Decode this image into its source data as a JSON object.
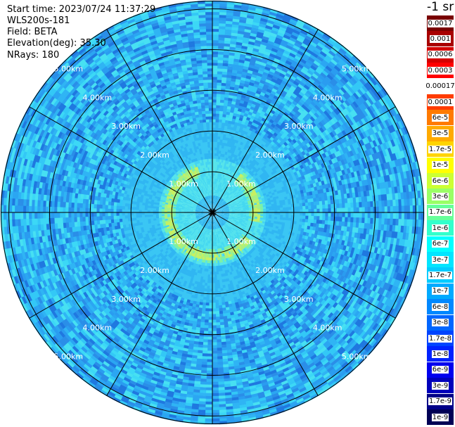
{
  "header": {
    "start_time": "Start time: 2023/07/24 11:37:29",
    "instrument": "WLS200s-181",
    "field": "Field: BETA",
    "elevation": "Elevation(deg): 35.30",
    "nrays": "NRays: 180"
  },
  "colorbar": {
    "unit": "-1 sr",
    "entries": [
      {
        "label": "0.0017",
        "color": "#7a0000"
      },
      {
        "label": "0.001",
        "color": "#a80000"
      },
      {
        "label": "0.0006",
        "color": "#d40000"
      },
      {
        "label": "0.0003",
        "color": "#ff0000"
      },
      {
        "label": "0.00017",
        "color": "#ffffff"
      },
      {
        "label": "0.0001",
        "color": "#ff3c00"
      },
      {
        "label": "6e-5",
        "color": "#ff7a00"
      },
      {
        "label": "3e-5",
        "color": "#ffaa00"
      },
      {
        "label": "1.7e-5",
        "color": "#ffd400"
      },
      {
        "label": "1e-5",
        "color": "#ffff00"
      },
      {
        "label": "6e-6",
        "color": "#ccff33"
      },
      {
        "label": "3e-6",
        "color": "#99ff66"
      },
      {
        "label": "1.7e-6",
        "color": "#66ff99"
      },
      {
        "label": "1e-6",
        "color": "#33ffcc"
      },
      {
        "label": "6e-7",
        "color": "#00ffff"
      },
      {
        "label": "3e-7",
        "color": "#00e5ff"
      },
      {
        "label": "1.7e-7",
        "color": "#00ccff"
      },
      {
        "label": "1e-7",
        "color": "#00aaff"
      },
      {
        "label": "6e-8",
        "color": "#0088ff"
      },
      {
        "label": "3e-8",
        "color": "#0066ff"
      },
      {
        "label": "1.7e-8",
        "color": "#0044ff"
      },
      {
        "label": "1e-8",
        "color": "#0022ff"
      },
      {
        "label": "6e-9",
        "color": "#0000ee"
      },
      {
        "label": "3e-9",
        "color": "#0000bb"
      },
      {
        "label": "1.7e-9",
        "color": "#000088"
      },
      {
        "label": "1e-9",
        "color": "#000055"
      }
    ]
  },
  "chart_data": {
    "type": "heatmap",
    "projection": "polar (PPI scan)",
    "field": "BETA",
    "elevation_deg": 35.3,
    "n_rays": 180,
    "range_rings_km": [
      1,
      2,
      3,
      4,
      5
    ],
    "range_ring_labels": [
      "1.00km",
      "2.00km",
      "3.00km",
      "4.00km",
      "5.00km"
    ],
    "max_range_km": 5.2,
    "spokes_every_deg": 30,
    "colorscale": "jet-like, logarithmic",
    "dominant_value_range": [
      "6e-8",
      "3e-7"
    ],
    "feature": "bright ring of ~1e-6 to 1e-5 at about 1.0-1.2 km range (strongest to the west and south)"
  }
}
